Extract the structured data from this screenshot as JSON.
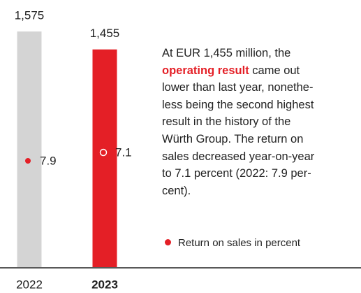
{
  "chart_data": {
    "type": "bar",
    "categories": [
      "2022",
      "2023"
    ],
    "values": [
      1575,
      1455
    ],
    "value_labels": [
      "1,575",
      "1,455"
    ],
    "colors": [
      "#d4d4d4",
      "#e41f26"
    ],
    "series": [
      {
        "name": "Return on sales in percent",
        "color": "#e41f26",
        "values": [
          7.9,
          7.1
        ]
      }
    ],
    "annotation": [
      "At EUR 1,455 million, the",
      {
        "highlight": "operating result",
        "text": " came out"
      },
      "lower than last year, nonethe-",
      "less being the second highest",
      "result in the history of the",
      "Würth Group. The return on",
      "sales decreased year-on-year",
      "to 7.1 percent (2022: 7.9 per-",
      "cent)."
    ]
  }
}
